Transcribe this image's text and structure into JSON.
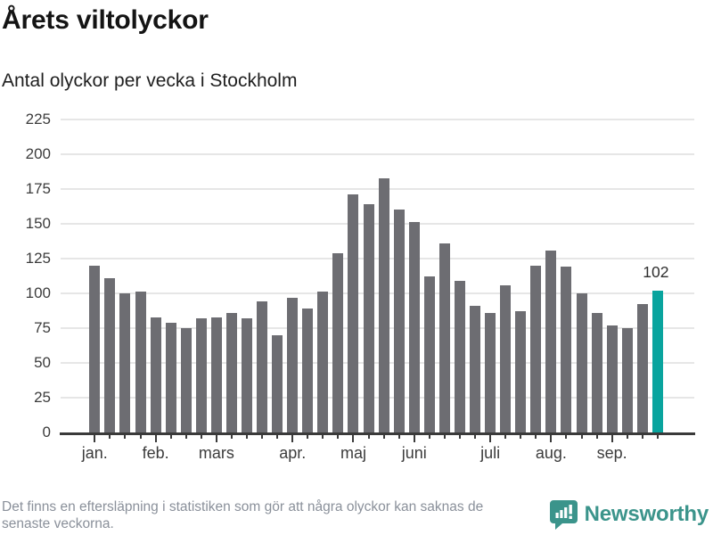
{
  "header": {
    "title": "Årets viltolyckor",
    "subtitle": "Antal olyckor per vecka i Stockholm"
  },
  "chart_data": {
    "type": "bar",
    "title": "Årets viltolyckor",
    "subtitle": "Antal olyckor per vecka i Stockholm",
    "unit": "olyckor per vecka",
    "values": [
      120,
      111,
      100,
      101,
      83,
      79,
      75,
      82,
      83,
      86,
      82,
      94,
      70,
      97,
      89,
      101,
      129,
      171,
      164,
      183,
      160,
      151,
      112,
      136,
      109,
      91,
      86,
      106,
      87,
      120,
      131,
      119,
      100,
      86,
      77,
      75,
      92,
      102
    ],
    "month_ticks": [
      {
        "label": "jan.",
        "bar_index": 0
      },
      {
        "label": "feb.",
        "bar_index": 4
      },
      {
        "label": "mars",
        "bar_index": 8
      },
      {
        "label": "apr.",
        "bar_index": 13
      },
      {
        "label": "maj",
        "bar_index": 17
      },
      {
        "label": "juni",
        "bar_index": 21
      },
      {
        "label": "juli",
        "bar_index": 26
      },
      {
        "label": "aug.",
        "bar_index": 30
      },
      {
        "label": "sep.",
        "bar_index": 34
      }
    ],
    "yticks": [
      0,
      25,
      50,
      75,
      100,
      125,
      150,
      175,
      200,
      225
    ],
    "ylim": [
      0,
      225
    ],
    "grid": true,
    "last_value_label": "102",
    "bar_color": "#6d6d72",
    "highlight_color": "#09a49e",
    "axis_color": "#3a3a3a",
    "gridline_color": "#e6e6e6"
  },
  "footer": {
    "note_lines": [
      "Det finns en eftersläpning i statistiken som gör att några olyckor kan saknas de",
      "senaste veckorna."
    ],
    "brand_name": "Newsworthy",
    "brand_color": "#3b948b"
  }
}
